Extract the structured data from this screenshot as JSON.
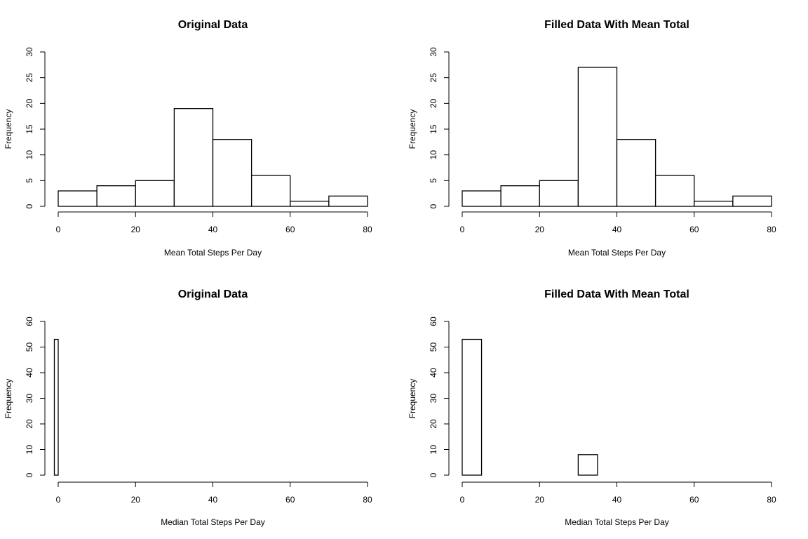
{
  "chart_data": [
    {
      "type": "bar",
      "title": "Original Data",
      "xlabel": "Mean Total Steps Per Day",
      "ylabel": "Frequency",
      "xlim": [
        0,
        80
      ],
      "ylim": [
        0,
        30
      ],
      "xticks": [
        0,
        20,
        40,
        60,
        80
      ],
      "yticks": [
        0,
        5,
        10,
        15,
        20,
        25,
        30
      ],
      "bins": [
        {
          "from": 0,
          "to": 10,
          "count": 3
        },
        {
          "from": 10,
          "to": 20,
          "count": 4
        },
        {
          "from": 20,
          "to": 30,
          "count": 5
        },
        {
          "from": 30,
          "to": 40,
          "count": 19
        },
        {
          "from": 40,
          "to": 50,
          "count": 13
        },
        {
          "from": 50,
          "to": 60,
          "count": 6
        },
        {
          "from": 60,
          "to": 70,
          "count": 1
        },
        {
          "from": 70,
          "to": 80,
          "count": 2
        }
      ],
      "grid": false
    },
    {
      "type": "bar",
      "title": "Filled Data With Mean Total",
      "xlabel": "Mean Total Steps Per Day",
      "ylabel": "Frequency",
      "xlim": [
        0,
        80
      ],
      "ylim": [
        0,
        30
      ],
      "xticks": [
        0,
        20,
        40,
        60,
        80
      ],
      "yticks": [
        0,
        5,
        10,
        15,
        20,
        25,
        30
      ],
      "bins": [
        {
          "from": 0,
          "to": 10,
          "count": 3
        },
        {
          "from": 10,
          "to": 20,
          "count": 4
        },
        {
          "from": 20,
          "to": 30,
          "count": 5
        },
        {
          "from": 30,
          "to": 40,
          "count": 27
        },
        {
          "from": 40,
          "to": 50,
          "count": 13
        },
        {
          "from": 50,
          "to": 60,
          "count": 6
        },
        {
          "from": 60,
          "to": 70,
          "count": 1
        },
        {
          "from": 70,
          "to": 80,
          "count": 2
        }
      ],
      "grid": false
    },
    {
      "type": "bar",
      "title": "Original Data",
      "xlabel": "Median Total Steps Per Day",
      "ylabel": "Frequency",
      "xlim": [
        0,
        80
      ],
      "ylim": [
        0,
        60
      ],
      "xticks": [
        0,
        20,
        40,
        60,
        80
      ],
      "yticks": [
        0,
        10,
        20,
        30,
        40,
        50,
        60
      ],
      "bins": [
        {
          "from": -1,
          "to": 0,
          "count": 53
        }
      ],
      "grid": false
    },
    {
      "type": "bar",
      "title": "Filled Data With Mean Total",
      "xlabel": "Median Total Steps Per Day",
      "ylabel": "Frequency",
      "xlim": [
        0,
        80
      ],
      "ylim": [
        0,
        60
      ],
      "xticks": [
        0,
        20,
        40,
        60,
        80
      ],
      "yticks": [
        0,
        10,
        20,
        30,
        40,
        50,
        60
      ],
      "bins": [
        {
          "from": 0,
          "to": 5,
          "count": 53
        },
        {
          "from": 5,
          "to": 10,
          "count": 0
        },
        {
          "from": 10,
          "to": 15,
          "count": 0
        },
        {
          "from": 15,
          "to": 20,
          "count": 0
        },
        {
          "from": 20,
          "to": 25,
          "count": 0
        },
        {
          "from": 25,
          "to": 30,
          "count": 0
        },
        {
          "from": 30,
          "to": 35,
          "count": 8
        }
      ],
      "grid": false
    }
  ]
}
